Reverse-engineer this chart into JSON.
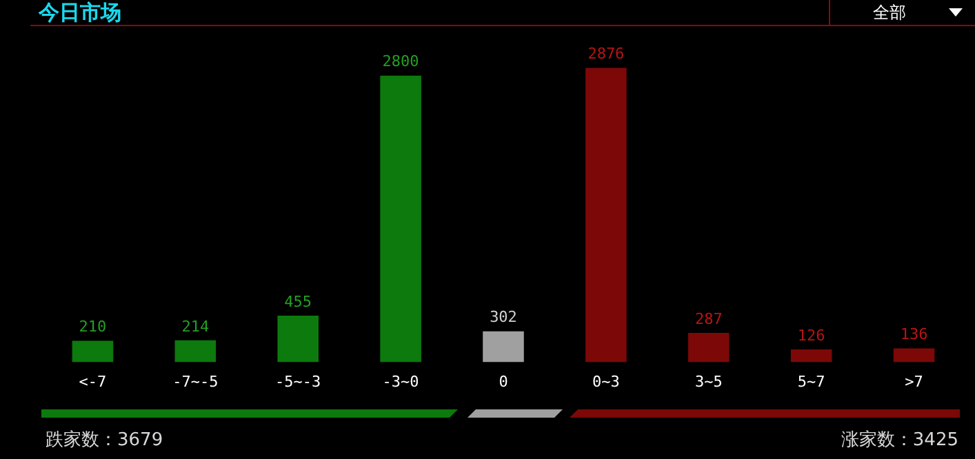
{
  "chart_data": {
    "type": "bar",
    "title": "今日市场",
    "categories": [
      "<-7",
      "-7~-5",
      "-5~-3",
      "-3~0",
      "0",
      "0~3",
      "3~5",
      "5~7",
      ">7"
    ],
    "values": [
      210,
      214,
      455,
      2800,
      302,
      2876,
      287,
      126,
      136
    ],
    "colors": [
      "#0c7a0c",
      "#0c7a0c",
      "#0c7a0c",
      "#0c7a0c",
      "#a0a0a0",
      "#7d0808",
      "#7d0808",
      "#7d0808",
      "#7d0808"
    ],
    "data_labels": true,
    "legend": false,
    "annotations": [
      "全部",
      "跌家数：3679",
      "涨家数：3425"
    ]
  }
}
